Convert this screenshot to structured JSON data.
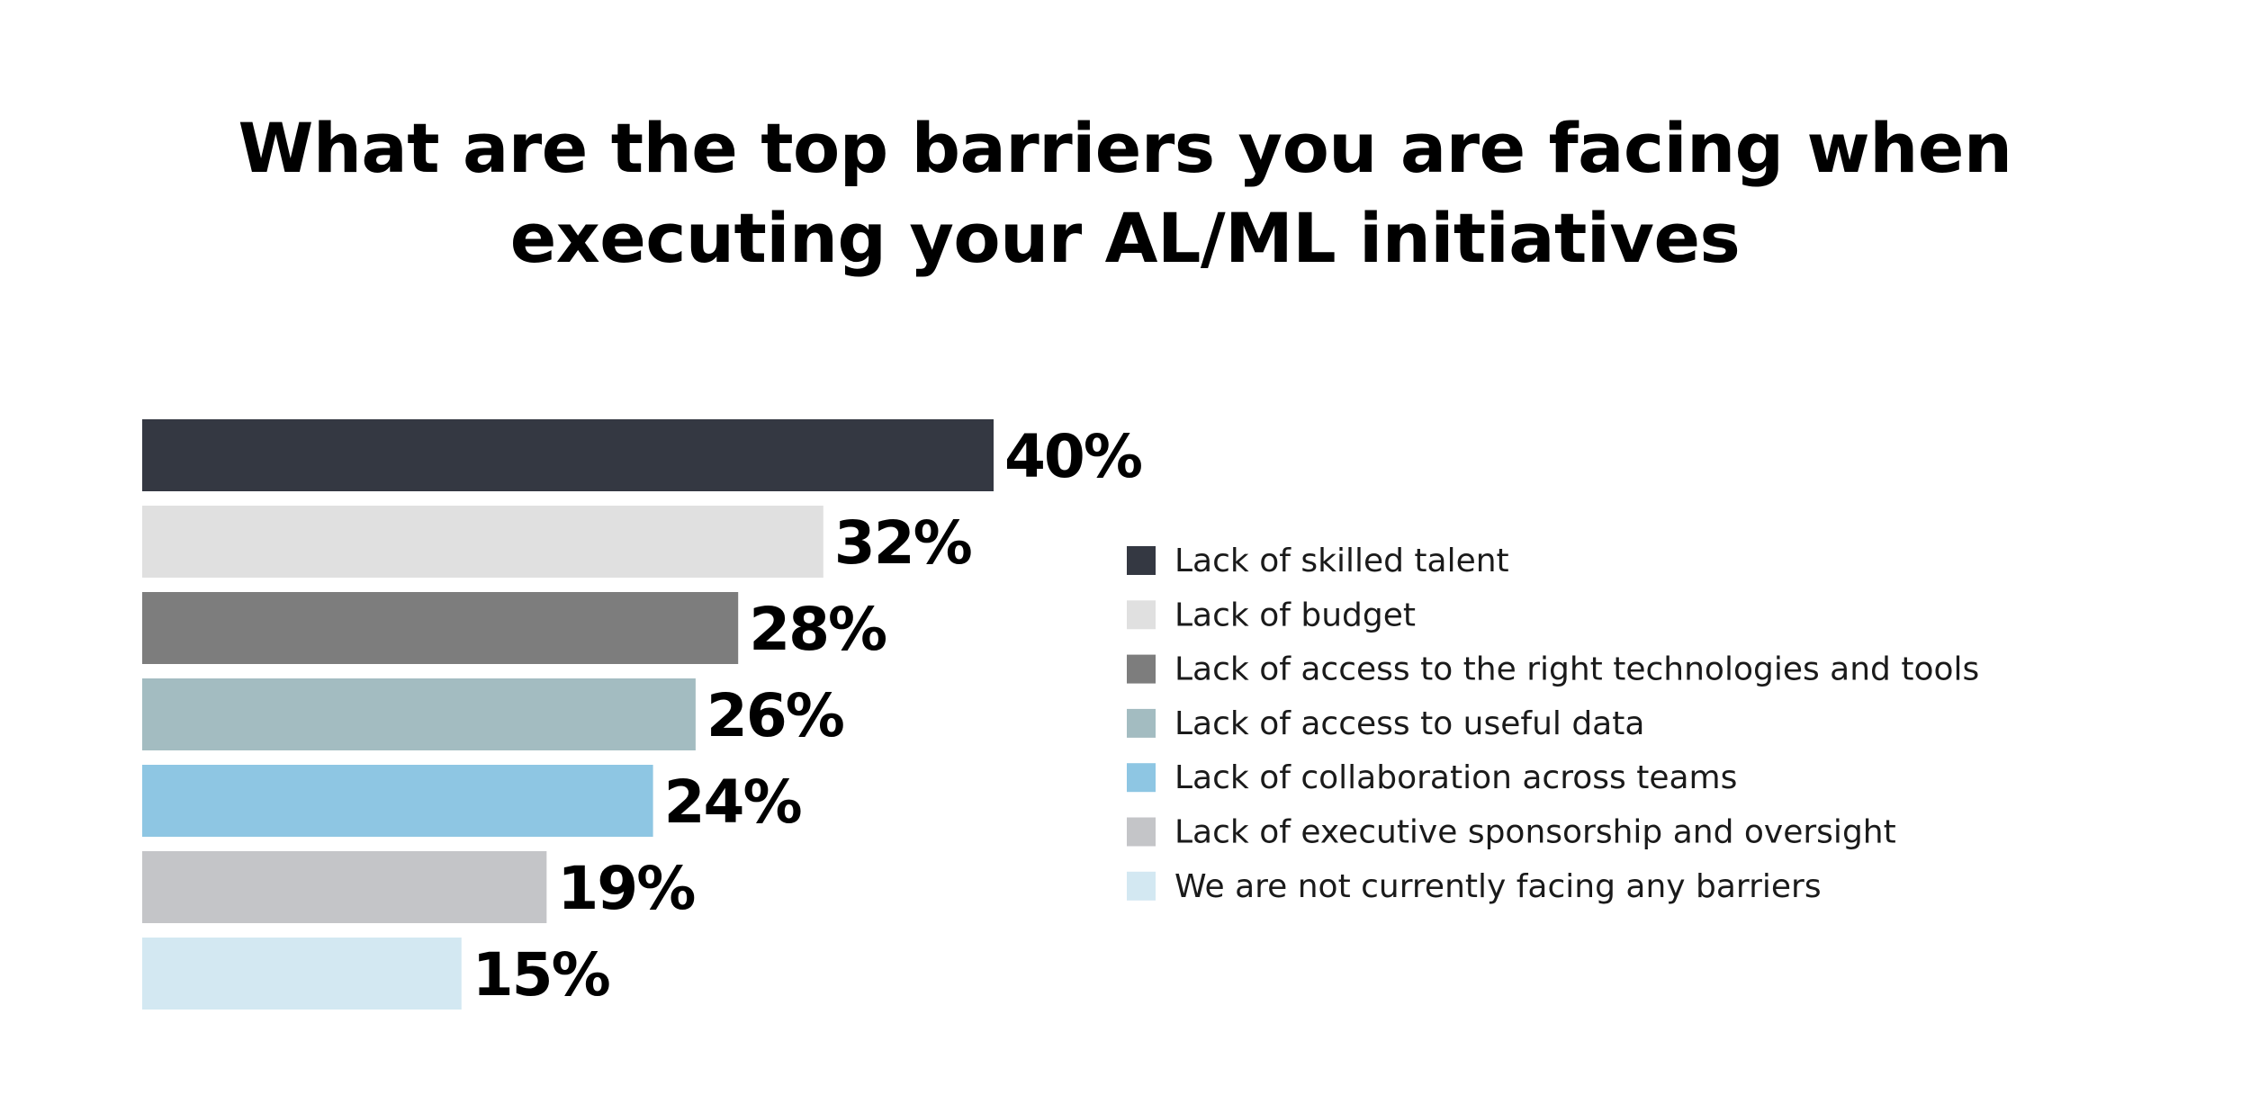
{
  "chart_data": {
    "type": "bar",
    "orientation": "horizontal",
    "title": "What are the top barriers you are facing when executing your AL/ML initiatives",
    "title_lines": [
      "What are the top barriers you are facing when",
      "executing your AL/ML initiatives"
    ],
    "categories": [
      "Lack of skilled talent",
      "Lack of budget",
      "Lack of access to the right technologies and tools",
      "Lack of access to useful data",
      "Lack of collaboration across teams",
      "Lack of executive sponsorship and oversight",
      "We are not currently facing any barriers"
    ],
    "values": [
      40,
      32,
      28,
      26,
      24,
      19,
      15
    ],
    "value_labels": [
      "40%",
      "32%",
      "28%",
      "26%",
      "24%",
      "19%",
      "15%"
    ],
    "colors": [
      "#343842",
      "#e0e0e0",
      "#7d7d7d",
      "#a3bcc1",
      "#8ec6e3",
      "#c4c5c8",
      "#d3e8f2"
    ],
    "unit": "%",
    "xlabel": "",
    "ylabel": "",
    "grid": false,
    "legend_position": "right"
  }
}
